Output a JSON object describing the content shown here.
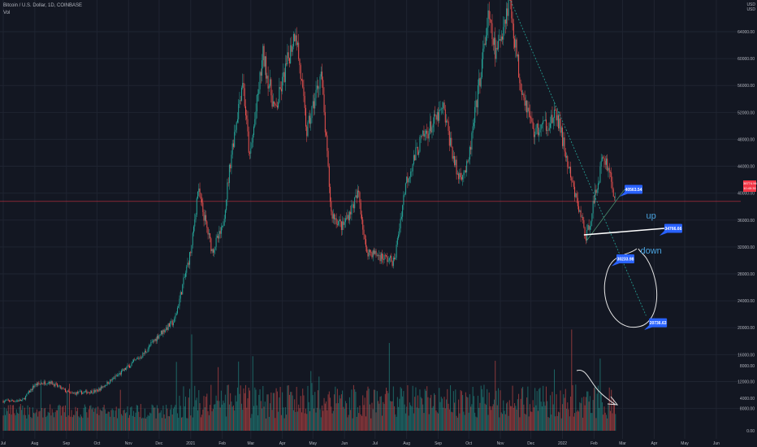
{
  "header": {
    "title": "Bitcoin / U.S. Dollar, 1D, COINBASE",
    "volume_label": "Vol"
  },
  "currency_tag": {
    "line1": "USD",
    "line2": "USD"
  },
  "price_tag": {
    "price": "38774.96",
    "countdown": "10:45:30"
  },
  "colors": {
    "background": "#131722",
    "up": "#26a69a",
    "down": "#ef5350",
    "grid": "#1f2431",
    "axis_text": "#b2b5be",
    "label_bg": "#2962ff",
    "price_line": "#f23645"
  },
  "chart_data": {
    "type": "candlestick",
    "title": "Bitcoin / U.S. Dollar, 1D, COINBASE",
    "y_ticks": [
      "64000.00",
      "60000.00",
      "56000.00",
      "52000.00",
      "48000.00",
      "44000.00",
      "40000.00",
      "36000.00",
      "32000.00",
      "28000.00",
      "24000.00",
      "20000.00",
      "16000.00",
      "12000.00",
      "8000.00"
    ],
    "ylim": [
      6500,
      67500
    ],
    "x_ticks": [
      "Jul",
      "Aug",
      "Sep",
      "Oct",
      "Nov",
      "Dec",
      "2021",
      "Feb",
      "Mar",
      "Apr",
      "May",
      "Jun",
      "Jul",
      "Aug",
      "Sep",
      "Oct",
      "Nov",
      "Dec",
      "2022",
      "Feb",
      "Mar",
      "Apr",
      "May",
      "Jun"
    ],
    "volume_ticks": [
      "8000.00",
      "4000.00",
      "0.00"
    ],
    "close_path": [
      [
        "2020-07-01",
        9100
      ],
      [
        "2020-07-20",
        9200
      ],
      [
        "2020-08-01",
        11500
      ],
      [
        "2020-08-15",
        12000
      ],
      [
        "2020-09-05",
        10200
      ],
      [
        "2020-10-01",
        10600
      ],
      [
        "2020-10-22",
        13000
      ],
      [
        "2020-11-15",
        16000
      ],
      [
        "2020-12-01",
        19000
      ],
      [
        "2020-12-16",
        21000
      ],
      [
        "2021-01-02",
        32000
      ],
      [
        "2021-01-08",
        40500
      ],
      [
        "2021-01-22",
        31500
      ],
      [
        "2021-02-01",
        34500
      ],
      [
        "2021-02-10",
        46000
      ],
      [
        "2021-02-21",
        57000
      ],
      [
        "2021-02-28",
        45000
      ],
      [
        "2021-03-13",
        60500
      ],
      [
        "2021-03-25",
        52000
      ],
      [
        "2021-04-14",
        64500
      ],
      [
        "2021-04-25",
        49000
      ],
      [
        "2021-05-09",
        58000
      ],
      [
        "2021-05-19",
        37000
      ],
      [
        "2021-05-30",
        35000
      ],
      [
        "2021-06-15",
        40000
      ],
      [
        "2021-06-22",
        31500
      ],
      [
        "2021-07-20",
        29800
      ],
      [
        "2021-07-31",
        41500
      ],
      [
        "2021-08-14",
        47500
      ],
      [
        "2021-09-06",
        52500
      ],
      [
        "2021-09-20",
        42500
      ],
      [
        "2021-09-30",
        43800
      ],
      [
        "2021-10-20",
        66000
      ],
      [
        "2021-10-28",
        60500
      ],
      [
        "2021-11-10",
        69000
      ],
      [
        "2021-11-20",
        57000
      ],
      [
        "2021-12-04",
        49000
      ],
      [
        "2021-12-27",
        51500
      ],
      [
        "2022-01-10",
        41500
      ],
      [
        "2022-01-22",
        35000
      ],
      [
        "2022-01-24",
        33000
      ],
      [
        "2022-02-10",
        45500
      ],
      [
        "2022-02-15",
        44000
      ],
      [
        "2022-02-22",
        38774
      ]
    ],
    "annotations": [
      {
        "text": "40563.54",
        "x": "2022-03-03",
        "y": 40563.54,
        "kind": "price-label"
      },
      {
        "text": "34766.66",
        "x": "2022-04-11",
        "y": 34766.66,
        "kind": "price-label"
      },
      {
        "text": "30233.98",
        "x": "2022-02-23",
        "y": 30233.98,
        "kind": "price-label"
      },
      {
        "text": "20736.63",
        "x": "2022-03-27",
        "y": 20736.63,
        "kind": "price-label"
      },
      {
        "text": "up",
        "x": "2022-03-29",
        "y": 36200,
        "kind": "note"
      },
      {
        "text": "down",
        "x": "2022-03-29",
        "y": 31000,
        "kind": "note"
      }
    ],
    "lines": [
      {
        "from": [
          "2021-11-10",
          69000
        ],
        "to": [
          "2022-03-24",
          21800
        ],
        "style": "dotted",
        "color": "#26a69a"
      },
      {
        "from": [
          "2022-01-25",
          33000
        ],
        "to": [
          "2022-03-03",
          40563.54
        ],
        "style": "solid",
        "color": "#4a8c6d"
      },
      {
        "from": [
          "2022-01-22",
          33800
        ],
        "to": [
          "2022-04-11",
          34766.66
        ],
        "style": "solid",
        "color": "#ffffff"
      }
    ],
    "current_price": 38774.96,
    "grid": true
  }
}
